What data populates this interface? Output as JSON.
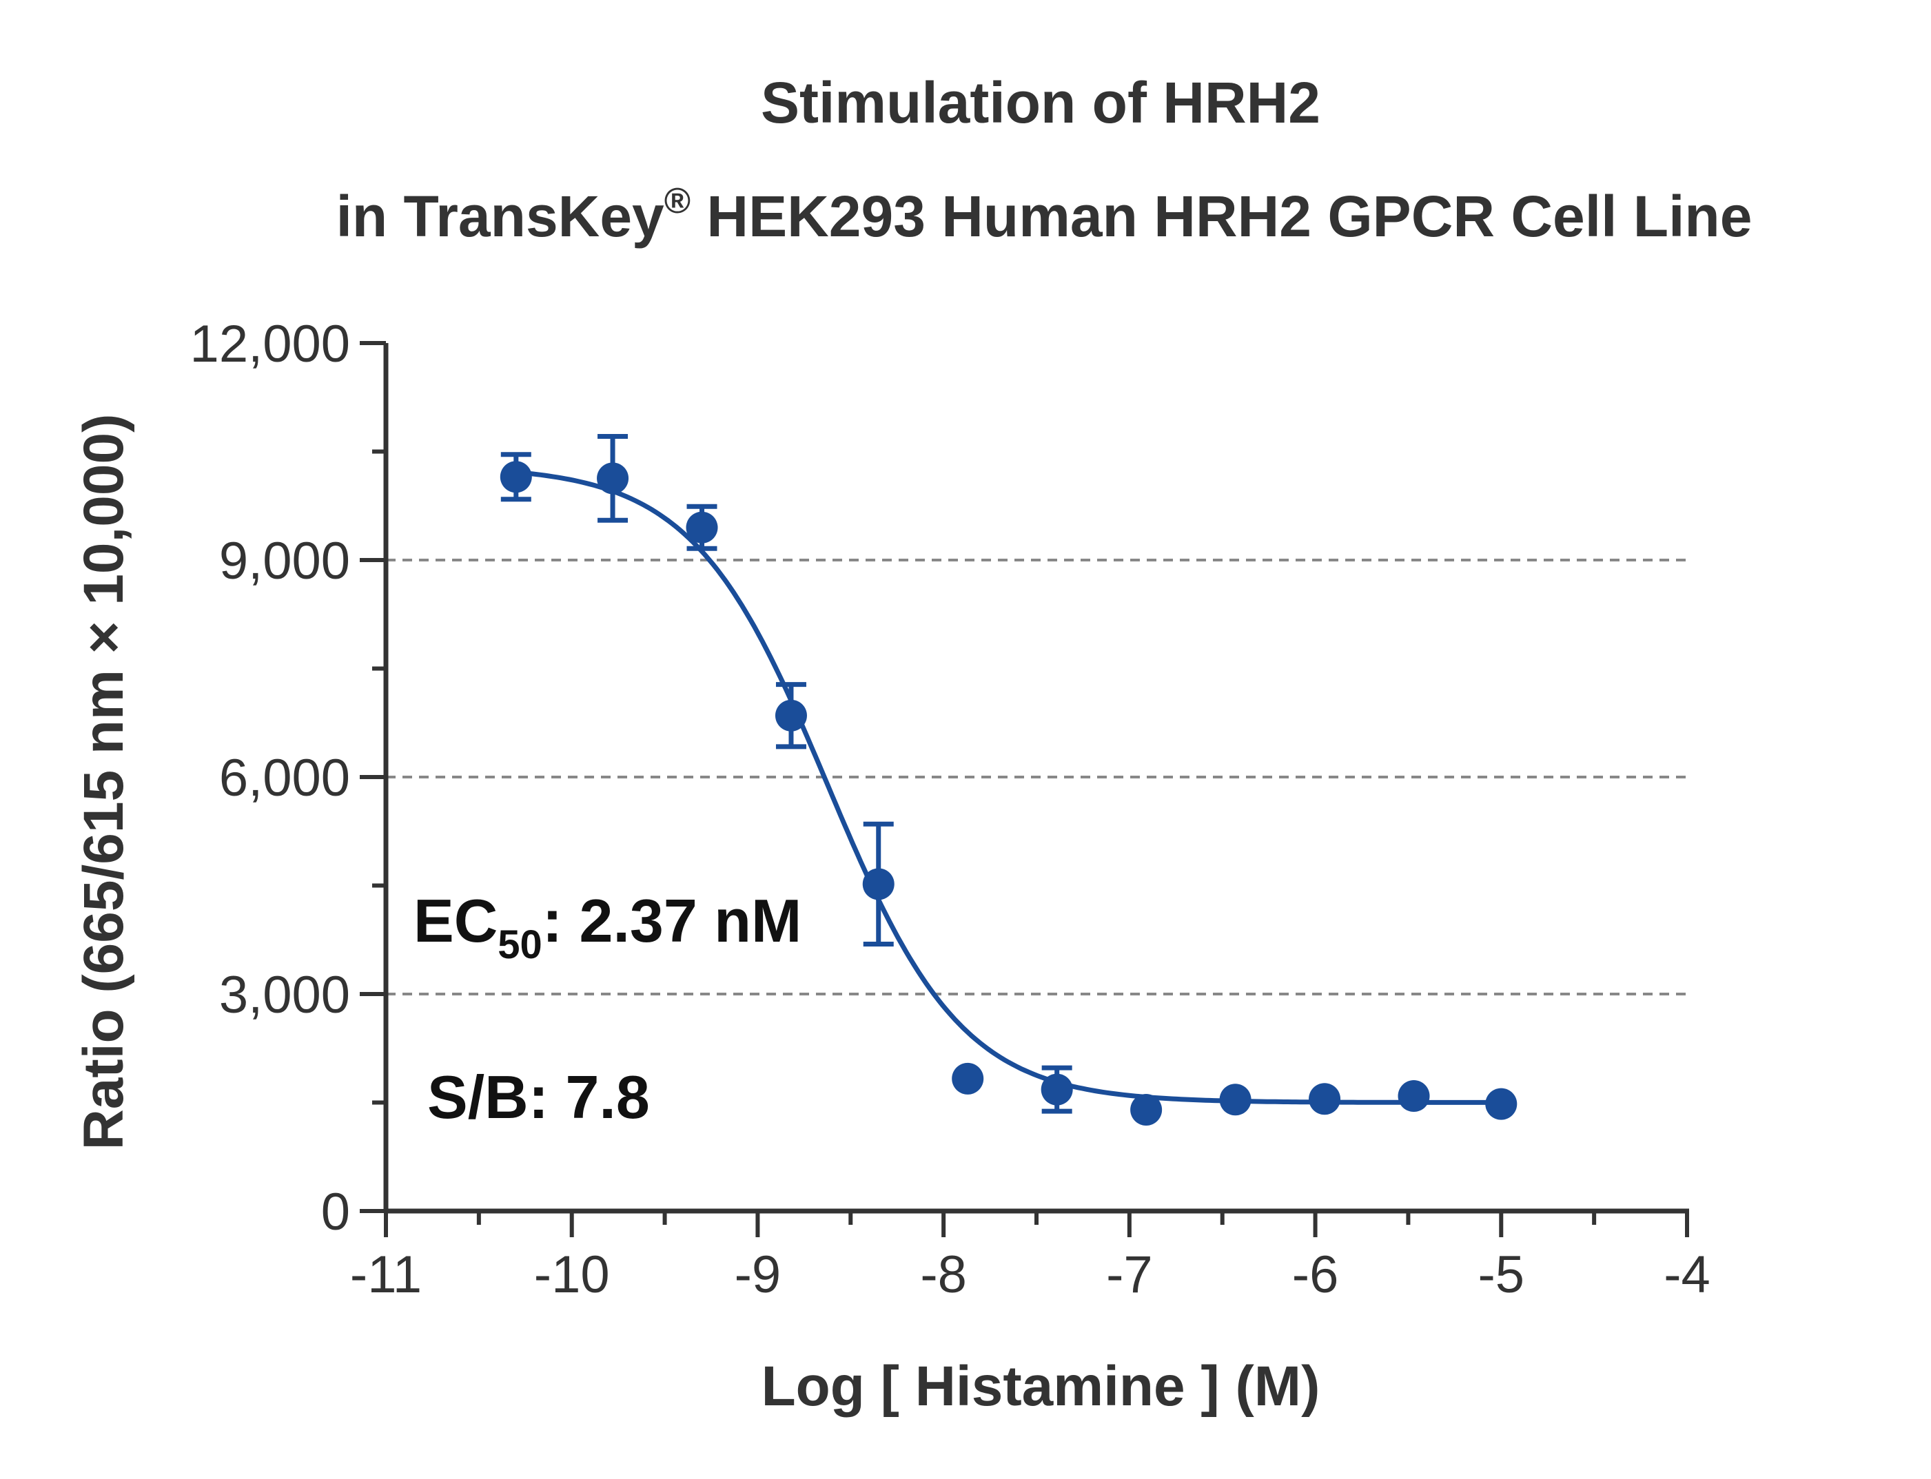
{
  "chart_data": {
    "type": "scatter",
    "title": "Stimulation of  HRH2",
    "subtitle_parts": {
      "before": "in TransKey",
      "mark": "®",
      "after": " HEK293 Human HRH2 GPCR Cell Line"
    },
    "xlabel": "Log [ Histamine ]  (M)",
    "ylabel": "Ratio (665/615 nm × 10,000)",
    "xlim": [
      -11,
      -4
    ],
    "ylim": [
      0,
      12000
    ],
    "x_ticks": [
      -11,
      -10,
      -9,
      -8,
      -7,
      -6,
      -5,
      -4
    ],
    "x_tick_labels": [
      "-11",
      "-10",
      "-9",
      "-8",
      "-7",
      "-6",
      "-5",
      "-4"
    ],
    "y_ticks": [
      0,
      3000,
      6000,
      9000,
      12000
    ],
    "y_tick_labels": [
      "0",
      "3,000",
      "6,000",
      "9,000",
      "12,000"
    ],
    "grid": {
      "horizontal_dashed_at": [
        3000,
        6000,
        9000
      ]
    },
    "series": [
      {
        "x": [
          -10.3,
          -9.78,
          -9.3,
          -8.82,
          -8.35,
          -7.87,
          -7.39,
          -6.91,
          -6.43,
          -5.95,
          -5.47,
          -5.0
        ],
        "y": [
          10150,
          10130,
          9450,
          6850,
          4520,
          1830,
          1680,
          1400,
          1540,
          1550,
          1590,
          1480
        ],
        "error": [
          310,
          580,
          290,
          430,
          830,
          0,
          300,
          0,
          0,
          0,
          0,
          0
        ],
        "color": "#1a4d99"
      }
    ],
    "fit_curve": {
      "model": "four-parameter logistic",
      "top": 10300,
      "bottom": 1500,
      "log_ec50": -8.625,
      "hill_slope": -1.2,
      "color": "#1a4d99"
    },
    "annotations": [
      {
        "prefix": "EC",
        "subscript": "50",
        "suffix": ": 2.37 nM"
      },
      {
        "text": "S/B: 7.8"
      }
    ]
  }
}
